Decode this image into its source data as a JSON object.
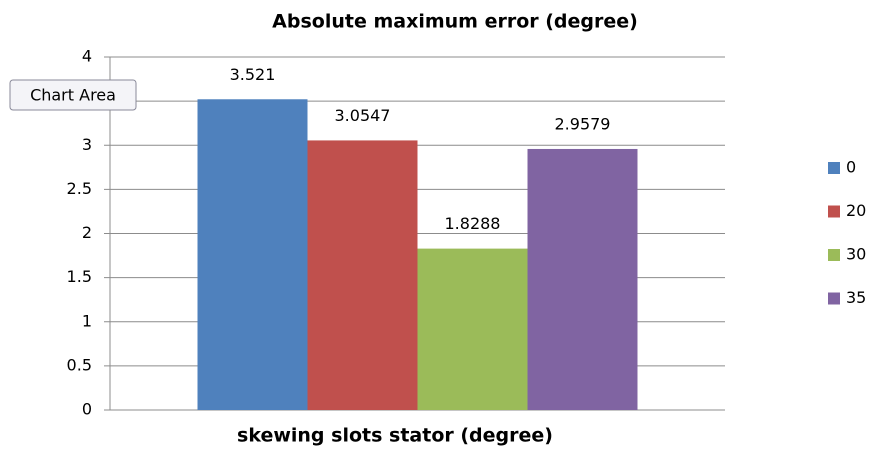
{
  "chart_data": {
    "type": "bar",
    "title": "Absolute maximum error (degree)",
    "x_label": "skewing slots stator (degree)",
    "tooltip": "Chart Area",
    "categories": [
      null
    ],
    "series": [
      {
        "name": "0",
        "color": "#4f81bd",
        "values": [
          3.521
        ]
      },
      {
        "name": "20",
        "color": "#c0504d",
        "values": [
          3.0547
        ]
      },
      {
        "name": "30",
        "color": "#9bbb59",
        "values": [
          1.8288
        ]
      },
      {
        "name": "35",
        "color": "#8064a2",
        "values": [
          2.9579
        ]
      }
    ],
    "ylim": [
      0,
      4
    ],
    "yticks": [
      0,
      0.5,
      1,
      1.5,
      2,
      2.5,
      3,
      3.5,
      4
    ],
    "grid": true,
    "legend": "right"
  }
}
